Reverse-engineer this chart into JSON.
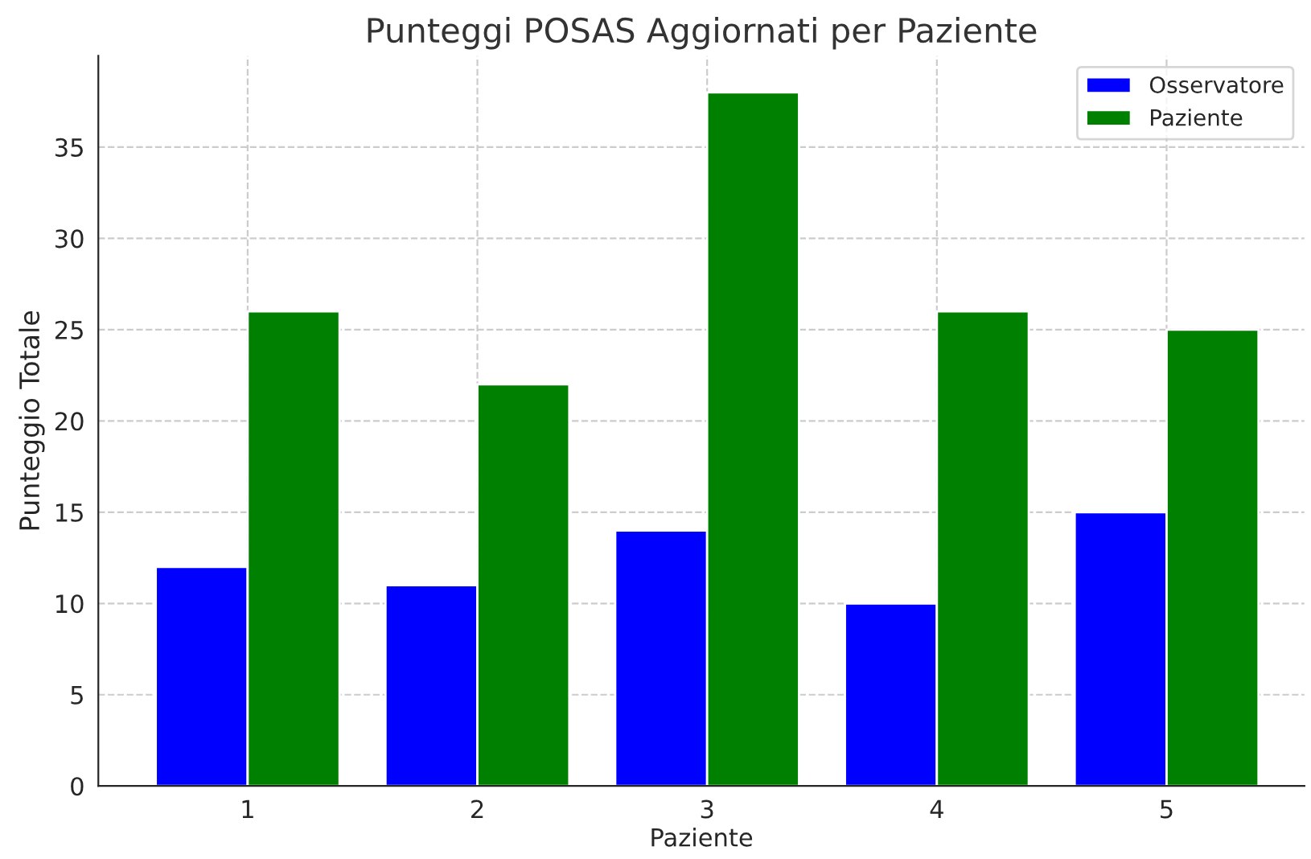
{
  "chart_data": {
    "type": "bar",
    "title": "Punteggi POSAS Aggiornati per Paziente",
    "xlabel": "Paziente",
    "ylabel": "Punteggio Totale",
    "categories": [
      "1",
      "2",
      "3",
      "4",
      "5"
    ],
    "series": [
      {
        "name": "Osservatore",
        "color": "#0000ff",
        "values": [
          12,
          11,
          14,
          10,
          15
        ]
      },
      {
        "name": "Paziente",
        "color": "#008000",
        "values": [
          26,
          22,
          38,
          26,
          25
        ]
      }
    ],
    "ylim": [
      0,
      40
    ],
    "yticks": [
      0,
      5,
      10,
      15,
      20,
      25,
      30,
      35
    ],
    "grid": true,
    "legend": "top right"
  }
}
